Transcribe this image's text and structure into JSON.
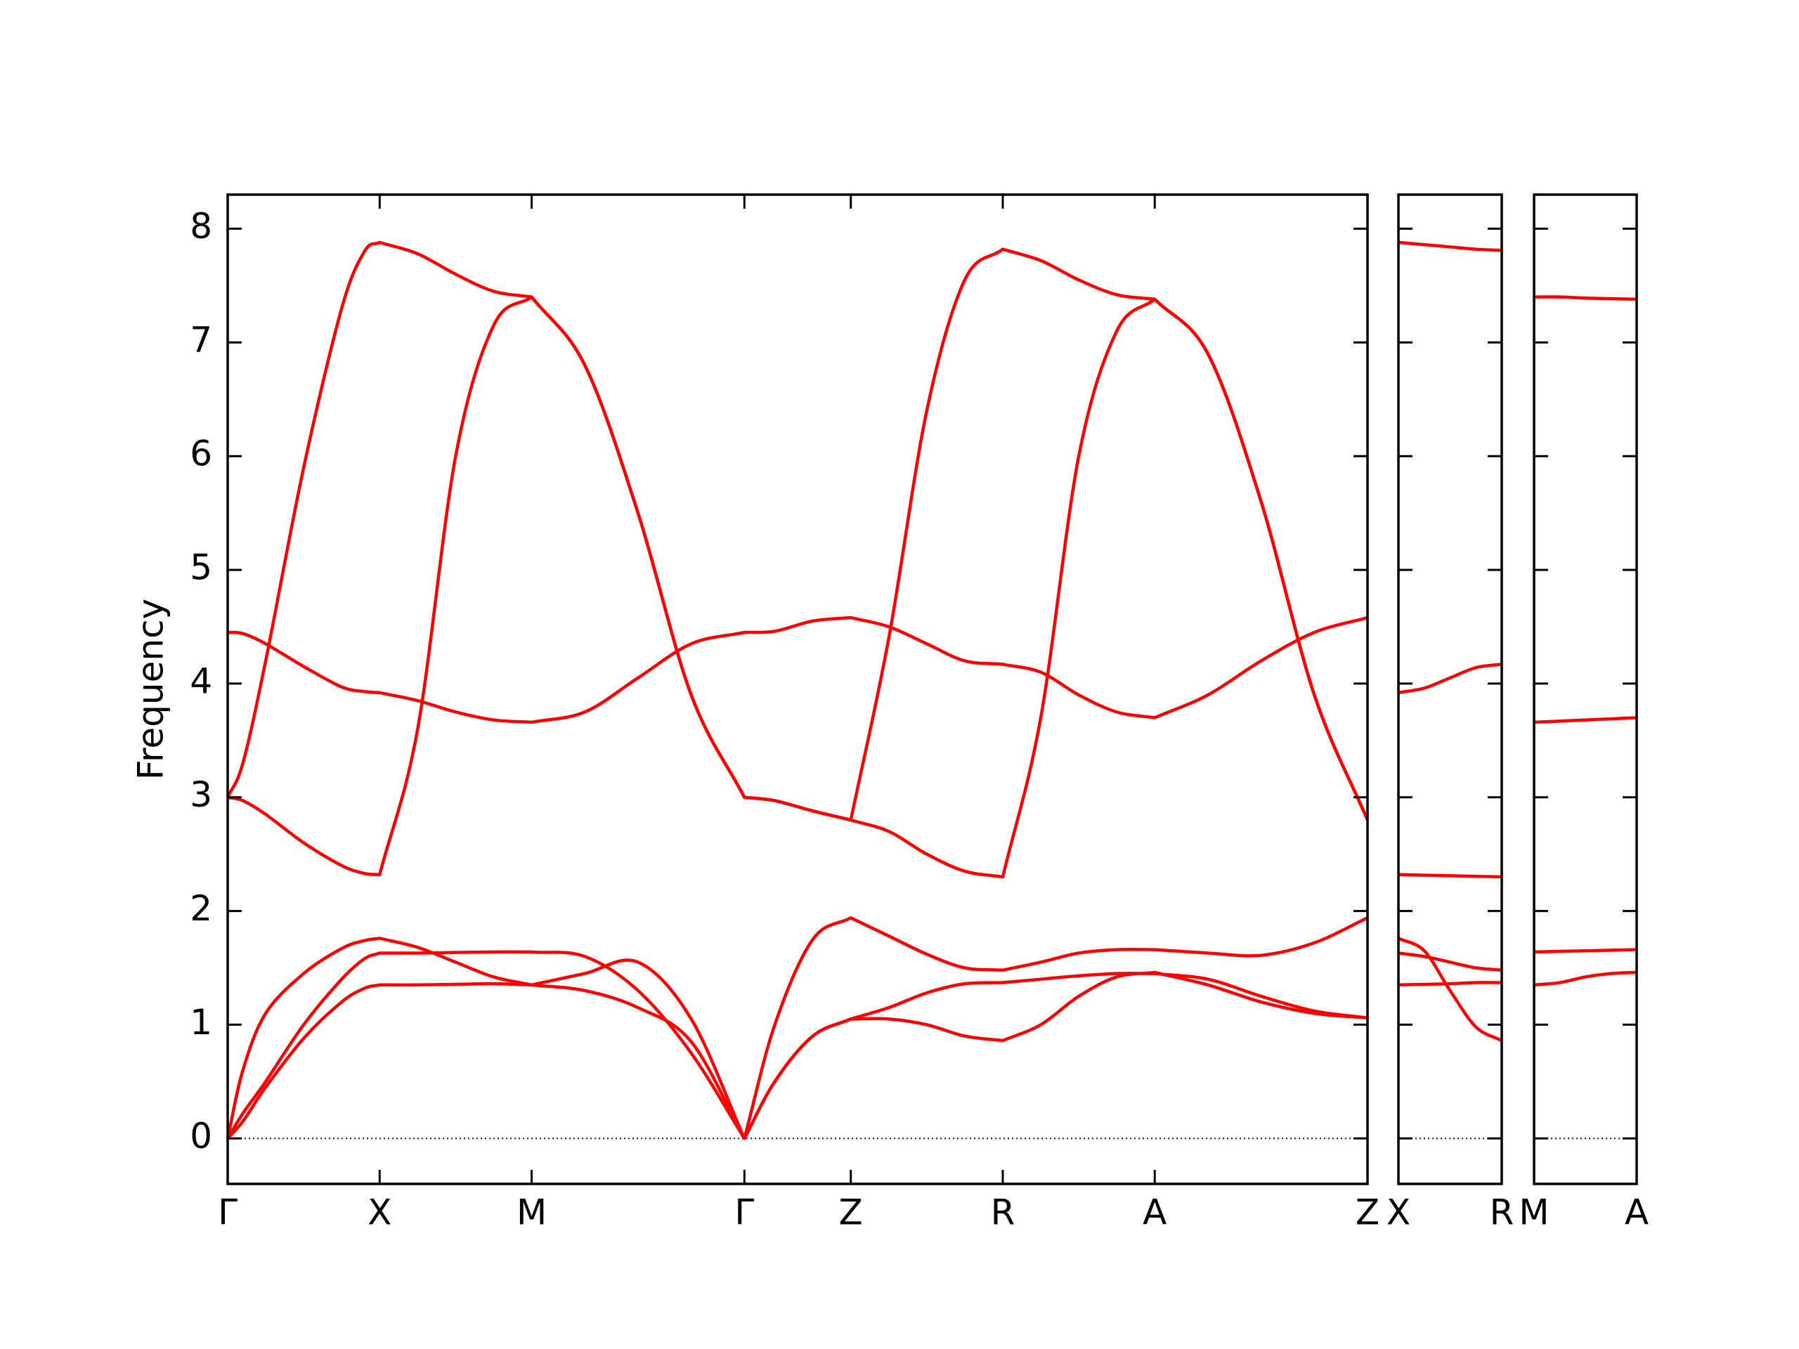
{
  "chart_data": [
    {
      "type": "line",
      "ylabel": "Frequency",
      "x": [
        0,
        0.1,
        0.25,
        0.5,
        0.75,
        0.9,
        1,
        1.25,
        1.5,
        1.75,
        2,
        2.35,
        2.7,
        3.05,
        3.4,
        3.6,
        3.85,
        4.1,
        4.35,
        4.6,
        4.85,
        5.1,
        5.35,
        5.6,
        5.85,
        6.1,
        6.45,
        6.8,
        7.15,
        7.5
      ],
      "series": [
        {
          "color": "#ff0000",
          "values": [
            3.0,
            3.3,
            4.2,
            5.9,
            7.3,
            7.8,
            7.88,
            7.78,
            7.6,
            7.45,
            7.4,
            6.8,
            5.5,
            3.9,
            3.0,
            2.97,
            2.88,
            2.8,
            4.4,
            6.4,
            7.55,
            7.82,
            7.72,
            7.55,
            7.42,
            7.38,
            6.9,
            5.6,
            3.9,
            2.8
          ]
        },
        {
          "color": "#ff0000",
          "values": [
            3.0,
            2.97,
            2.85,
            2.6,
            2.4,
            2.33,
            2.32,
            3.6,
            6.0,
            7.15,
            7.4,
            6.8,
            5.5,
            3.9,
            3.0,
            2.97,
            2.88,
            2.8,
            2.7,
            2.5,
            2.35,
            2.3,
            3.7,
            6.0,
            7.1,
            7.38,
            6.9,
            5.6,
            3.9,
            2.8
          ]
        },
        {
          "color": "#ff0000",
          "values": [
            4.45,
            4.44,
            4.35,
            4.15,
            3.97,
            3.93,
            3.92,
            3.85,
            3.75,
            3.68,
            3.66,
            3.75,
            4.05,
            4.35,
            4.45,
            4.46,
            4.55,
            4.58,
            4.5,
            4.35,
            4.2,
            4.17,
            4.1,
            3.9,
            3.75,
            3.7,
            3.9,
            4.2,
            4.45,
            4.58
          ]
        },
        {
          "color": "#ff0000",
          "values": [
            0,
            0.6,
            1.1,
            1.45,
            1.67,
            1.74,
            1.76,
            1.68,
            1.55,
            1.42,
            1.35,
            1.45,
            1.55,
            1.05,
            0,
            1.0,
            1.75,
            1.94,
            1.78,
            1.62,
            1.5,
            1.48,
            1.55,
            1.63,
            1.66,
            1.66,
            1.63,
            1.61,
            1.72,
            1.94
          ]
        },
        {
          "color": "#ff0000",
          "values": [
            0,
            0.22,
            0.5,
            1.0,
            1.4,
            1.58,
            1.63,
            1.63,
            1.635,
            1.64,
            1.64,
            1.6,
            1.3,
            0.75,
            0,
            0.5,
            0.9,
            1.05,
            1.05,
            1.0,
            0.9,
            0.86,
            1.0,
            1.25,
            1.42,
            1.46,
            1.35,
            1.2,
            1.1,
            1.06
          ]
        },
        {
          "color": "#ff0000",
          "values": [
            0,
            0.15,
            0.45,
            0.88,
            1.2,
            1.32,
            1.35,
            1.35,
            1.355,
            1.36,
            1.35,
            1.3,
            1.15,
            0.85,
            0,
            0.5,
            0.9,
            1.05,
            1.15,
            1.28,
            1.36,
            1.37,
            1.4,
            1.43,
            1.45,
            1.45,
            1.4,
            1.25,
            1.12,
            1.06
          ]
        }
      ],
      "xlim": [
        0,
        7.5
      ],
      "ylim": [
        -0.4,
        8.3
      ],
      "yticks": [
        0,
        1,
        2,
        3,
        4,
        5,
        6,
        7,
        8
      ],
      "show_ytick_labels": true,
      "xticks": [
        {
          "value": 0,
          "label": "Γ"
        },
        {
          "value": 1,
          "label": "X"
        },
        {
          "value": 2,
          "label": "M"
        },
        {
          "value": 3.4,
          "label": "Γ"
        },
        {
          "value": 4.1,
          "label": "Z"
        },
        {
          "value": 5.1,
          "label": "R"
        },
        {
          "value": 6.1,
          "label": "A"
        },
        {
          "value": 7.5,
          "label": "Z"
        }
      ],
      "hline": {
        "value": 0,
        "color": "#0000ff"
      }
    },
    {
      "type": "line",
      "x": [
        0,
        0.175,
        0.35,
        0.525,
        0.7
      ],
      "series": [
        {
          "color": "#ff0000",
          "values": [
            7.88,
            7.86,
            7.84,
            7.82,
            7.81
          ]
        },
        {
          "color": "#ff0000",
          "values": [
            3.92,
            3.96,
            4.05,
            4.14,
            4.17
          ]
        },
        {
          "color": "#ff0000",
          "values": [
            2.32,
            2.315,
            2.31,
            2.305,
            2.3
          ]
        },
        {
          "color": "#ff0000",
          "values": [
            1.76,
            1.65,
            1.3,
            0.98,
            0.86
          ]
        },
        {
          "color": "#ff0000",
          "values": [
            1.63,
            1.6,
            1.55,
            1.5,
            1.48
          ]
        },
        {
          "color": "#ff0000",
          "values": [
            1.35,
            1.355,
            1.36,
            1.37,
            1.37
          ]
        }
      ],
      "xlim": [
        0,
        0.7
      ],
      "ylim": [
        -0.4,
        8.3
      ],
      "yticks": [
        0,
        1,
        2,
        3,
        4,
        5,
        6,
        7,
        8
      ],
      "show_ytick_labels": false,
      "xticks": [
        {
          "value": 0,
          "label": "X"
        },
        {
          "value": 0.7,
          "label": "R"
        }
      ],
      "hline": {
        "value": 0,
        "color": "#0000ff"
      }
    },
    {
      "type": "line",
      "x": [
        0,
        0.175,
        0.35,
        0.525,
        0.7
      ],
      "series": [
        {
          "color": "#ff0000",
          "values": [
            7.4,
            7.4,
            7.39,
            7.385,
            7.38
          ]
        },
        {
          "color": "#ff0000",
          "values": [
            3.66,
            3.67,
            3.68,
            3.69,
            3.7
          ]
        },
        {
          "color": "#ff0000",
          "values": [
            1.64,
            1.645,
            1.65,
            1.655,
            1.66
          ]
        },
        {
          "color": "#ff0000",
          "values": [
            1.35,
            1.37,
            1.42,
            1.45,
            1.46
          ]
        }
      ],
      "xlim": [
        0,
        0.7
      ],
      "ylim": [
        -0.4,
        8.3
      ],
      "yticks": [
        0,
        1,
        2,
        3,
        4,
        5,
        6,
        7,
        8
      ],
      "show_ytick_labels": false,
      "xticks": [
        {
          "value": 0,
          "label": "M"
        },
        {
          "value": 0.7,
          "label": "A"
        }
      ],
      "hline": {
        "value": 0,
        "color": "#0000ff"
      }
    }
  ]
}
